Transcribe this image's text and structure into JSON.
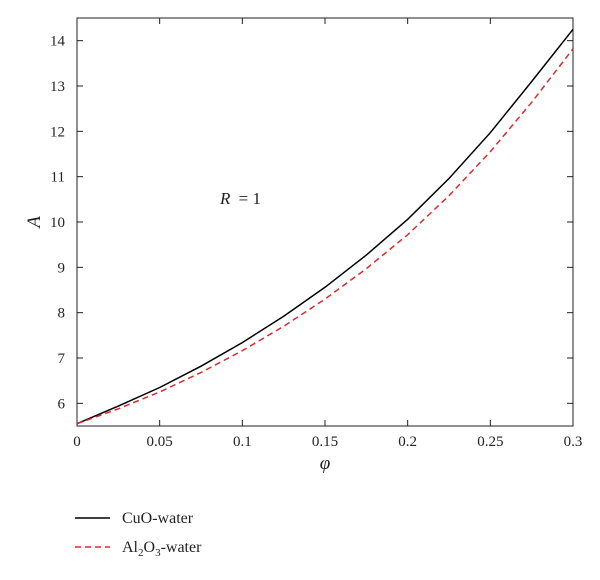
{
  "chart_data": {
    "type": "line",
    "title": "",
    "xlabel": "φ",
    "ylabel": "A",
    "xlim": [
      0,
      0.3
    ],
    "ylim": [
      5.5,
      14.5
    ],
    "x_ticks": [
      "0",
      "0.05",
      "0.1",
      "0.15",
      "0.2",
      "0.25",
      "0.3"
    ],
    "y_ticks": [
      "6",
      "7",
      "8",
      "9",
      "10",
      "11",
      "12",
      "13",
      "14"
    ],
    "annotation": {
      "variable": "R",
      "relation": "= 1"
    },
    "grid": false,
    "legend_position": "below",
    "series": [
      {
        "name": "CuO-water",
        "style": "solid",
        "color": "#000000",
        "x": [
          0,
          0.025,
          0.05,
          0.075,
          0.1,
          0.125,
          0.15,
          0.175,
          0.2,
          0.225,
          0.25,
          0.275,
          0.3
        ],
        "y": [
          5.55,
          5.94,
          6.35,
          6.82,
          7.34,
          7.92,
          8.56,
          9.27,
          10.06,
          10.96,
          11.97,
          13.1,
          14.25
        ]
      },
      {
        "name": "Al2O3-water",
        "name_parts": [
          "Al",
          "2",
          "O",
          "3",
          "-water"
        ],
        "style": "dashed",
        "color": "#e3262d",
        "x": [
          0,
          0.025,
          0.05,
          0.075,
          0.1,
          0.125,
          0.15,
          0.175,
          0.2,
          0.225,
          0.25,
          0.275,
          0.3
        ],
        "y": [
          5.55,
          5.88,
          6.25,
          6.68,
          7.16,
          7.7,
          8.3,
          8.97,
          9.72,
          10.58,
          11.55,
          12.64,
          13.82
        ]
      }
    ]
  }
}
